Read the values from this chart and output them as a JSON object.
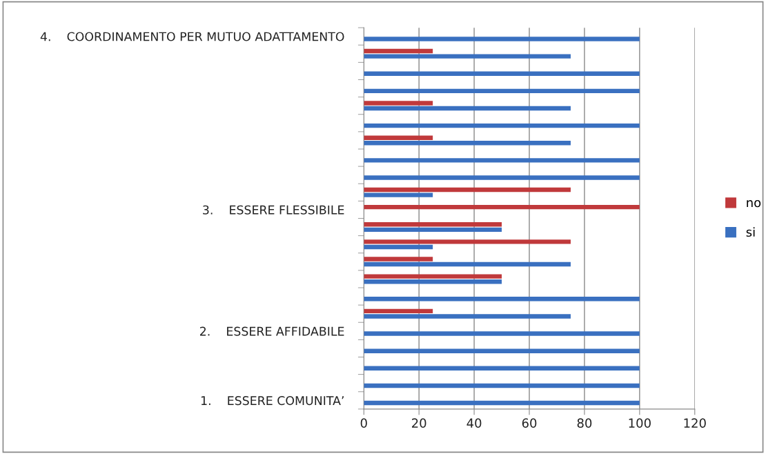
{
  "chart_data": {
    "type": "bar",
    "orientation": "horizontal",
    "categories": [
      "4.    COORDINAMENTO PER MUTUO ADATTAMENTO",
      null,
      null,
      null,
      null,
      null,
      null,
      null,
      null,
      null,
      "3.    ESSERE FLESSIBILE",
      null,
      null,
      null,
      null,
      null,
      null,
      "2.    ESSERE AFFIDABILE",
      null,
      null,
      null,
      "1.    ESSERE COMUNITA’"
    ],
    "series": [
      {
        "name": "si",
        "color": "#3a70c0",
        "values": [
          100,
          75,
          100,
          100,
          75,
          100,
          75,
          100,
          100,
          25,
          null,
          50,
          25,
          75,
          50,
          100,
          75,
          100,
          100,
          100,
          100,
          100
        ]
      },
      {
        "name": "no",
        "color": "#c0393b",
        "values": [
          null,
          25,
          null,
          null,
          25,
          null,
          25,
          null,
          null,
          75,
          100,
          50,
          75,
          25,
          50,
          null,
          25,
          null,
          null,
          null,
          null,
          null
        ]
      }
    ],
    "xlim": [
      0,
      120
    ],
    "xticks": [
      0,
      20,
      40,
      60,
      80,
      100,
      120
    ],
    "grid": "x",
    "legend": "right"
  }
}
